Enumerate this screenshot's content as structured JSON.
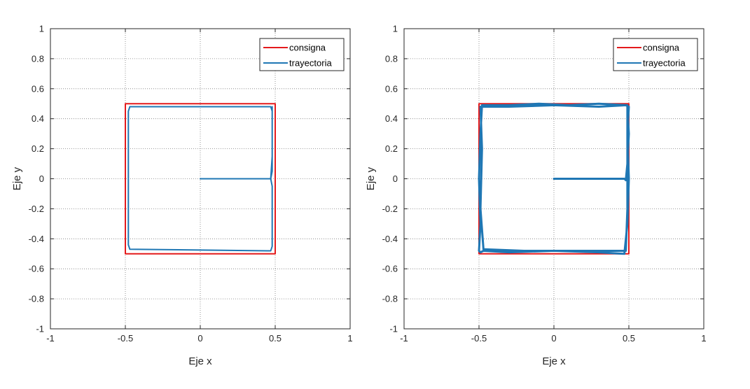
{
  "chart_data": [
    {
      "type": "line",
      "xlabel": "Eje x",
      "ylabel": "Eje y",
      "xlim": [
        -1,
        1
      ],
      "ylim": [
        -1,
        1
      ],
      "xticks": [
        "-1",
        "-0.5",
        "0",
        "0.5",
        "1"
      ],
      "yticks": [
        "-1",
        "-0.8",
        "-0.6",
        "-0.4",
        "-0.2",
        "0",
        "0.2",
        "0.4",
        "0.6",
        "0.8",
        "1"
      ],
      "grid": true,
      "legend_position": "top-right",
      "series": [
        {
          "name": "consigna",
          "color": "#e41a1c",
          "x": [
            0.5,
            0.5,
            -0.5,
            -0.5,
            0.5,
            0.5
          ],
          "y": [
            0,
            0.5,
            0.5,
            -0.5,
            -0.5,
            0
          ]
        },
        {
          "name": "trayectoria",
          "color": "#1f77b4",
          "x": [
            0,
            0.47,
            0.48,
            0.48,
            0.47,
            -0.47,
            -0.48,
            -0.48,
            -0.47,
            0.47,
            0.48,
            0.48,
            0.47,
            0.48,
            0.48
          ],
          "y": [
            0,
            0,
            0.15,
            0.45,
            0.48,
            0.48,
            0.45,
            -0.44,
            -0.47,
            -0.48,
            -0.45,
            -0.05,
            0,
            0.05,
            0.48
          ]
        }
      ]
    },
    {
      "type": "line",
      "xlabel": "Eje x",
      "ylabel": "Eje y",
      "xlim": [
        -1,
        1
      ],
      "ylim": [
        -1,
        1
      ],
      "xticks": [
        "-1",
        "-0.5",
        "0",
        "0.5",
        "1"
      ],
      "yticks": [
        "-1",
        "-0.8",
        "-0.6",
        "-0.4",
        "-0.2",
        "0",
        "0.2",
        "0.4",
        "0.6",
        "0.8",
        "1"
      ],
      "grid": true,
      "legend_position": "top-right",
      "series": [
        {
          "name": "consigna",
          "color": "#e41a1c",
          "x": [
            0.5,
            0.5,
            -0.5,
            -0.5,
            0.5,
            0.5
          ],
          "y": [
            0,
            0.5,
            0.5,
            -0.5,
            -0.5,
            0
          ]
        },
        {
          "name": "trayectoria",
          "color": "#1f77b4",
          "x": [
            0,
            0.47,
            0.48,
            0.49,
            0.5,
            0.49,
            0.3,
            0.1,
            -0.1,
            -0.3,
            -0.48,
            -0.49,
            -0.5,
            -0.49,
            -0.5,
            -0.49,
            -0.47,
            -0.3,
            0,
            0.3,
            0.47,
            0.49,
            0.5,
            0.49,
            0.5,
            0.48,
            0.3,
            0.0,
            -0.3,
            -0.49,
            -0.48,
            -0.49,
            -0.47,
            -0.2,
            0.2,
            0.48,
            0.49,
            0.49
          ],
          "y": [
            0,
            0,
            -0.01,
            0.1,
            0.3,
            0.49,
            0.5,
            0.49,
            0.5,
            0.49,
            0.49,
            0.3,
            0.0,
            -0.3,
            -0.48,
            -0.49,
            -0.48,
            -0.49,
            -0.48,
            -0.49,
            -0.5,
            -0.3,
            0.0,
            0.3,
            0.48,
            0.49,
            0.48,
            0.49,
            0.48,
            0.48,
            0.2,
            -0.2,
            -0.47,
            -0.48,
            -0.48,
            -0.48,
            -0.2,
            0.48
          ]
        }
      ]
    }
  ]
}
